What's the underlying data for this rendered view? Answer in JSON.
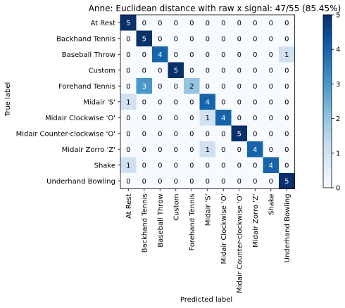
{
  "chart_data": {
    "type": "heatmap",
    "title": "Anne: Euclidean distance with raw x signal: 47/55 (85.45%)",
    "xlabel": "Predicted label",
    "ylabel": "True label",
    "row_labels": [
      "At Rest",
      "Backhand Tennis",
      "Baseball Throw",
      "Custom",
      "Forehand Tennis",
      "Midair 'S'",
      "Midair Clockwise 'O'",
      "Midair Counter-clockwise 'O'",
      "Midair Zorro 'Z'",
      "Shake",
      "Underhand Bowling"
    ],
    "col_labels": [
      "At Rest",
      "Backhand Tennis",
      "Baseball Throw",
      "Custom",
      "Forehand Tennis",
      "Midair 'S'",
      "Midair Clockwise 'O'",
      "Midair Counter-clockwise 'O'",
      "Midair Zorro 'Z'",
      "Shake",
      "Underhand Bowling"
    ],
    "values": [
      [
        5,
        0,
        0,
        0,
        0,
        0,
        0,
        0,
        0,
        0,
        0
      ],
      [
        0,
        5,
        0,
        0,
        0,
        0,
        0,
        0,
        0,
        0,
        0
      ],
      [
        0,
        0,
        4,
        0,
        0,
        0,
        0,
        0,
        0,
        0,
        1
      ],
      [
        0,
        0,
        0,
        5,
        0,
        0,
        0,
        0,
        0,
        0,
        0
      ],
      [
        0,
        3,
        0,
        0,
        2,
        0,
        0,
        0,
        0,
        0,
        0
      ],
      [
        1,
        0,
        0,
        0,
        0,
        4,
        0,
        0,
        0,
        0,
        0
      ],
      [
        0,
        0,
        0,
        0,
        0,
        1,
        4,
        0,
        0,
        0,
        0
      ],
      [
        0,
        0,
        0,
        0,
        0,
        0,
        0,
        5,
        0,
        0,
        0
      ],
      [
        0,
        0,
        0,
        0,
        0,
        1,
        0,
        0,
        4,
        0,
        0
      ],
      [
        1,
        0,
        0,
        0,
        0,
        0,
        0,
        0,
        0,
        4,
        0
      ],
      [
        0,
        0,
        0,
        0,
        0,
        0,
        0,
        0,
        0,
        0,
        5
      ]
    ],
    "vmin": 0,
    "vmax": 5,
    "colorbar_ticks": [
      0,
      1,
      2,
      3,
      4,
      5
    ],
    "colormap": "Blues",
    "colormap_stops": [
      "#f7fbff",
      "#deebf7",
      "#c6dbef",
      "#9ecae1",
      "#6baed6",
      "#4292c6",
      "#2171b5",
      "#08519c",
      "#08306b"
    ]
  }
}
